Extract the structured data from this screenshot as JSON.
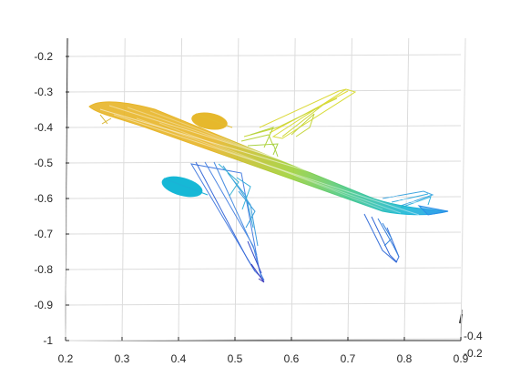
{
  "chart_data": {
    "type": "mesh",
    "description_type": "3d-wireframe",
    "colormap": [
      "#3e26a8",
      "#2c7bf0",
      "#15b8d8",
      "#4cc98a",
      "#b7cf2b",
      "#f9e032"
    ],
    "grid": true,
    "xlim": [
      0.2,
      0.9
    ],
    "ylim": [
      -1,
      -0.2
    ],
    "x_ticks": [
      0.2,
      0.3,
      0.4,
      0.5,
      0.6,
      0.7,
      0.8,
      0.9
    ],
    "x_tick_labels": [
      "0.2",
      "0.3",
      "0.4",
      "0.5",
      "0.6",
      "0.7",
      "0.8",
      "0.9"
    ],
    "y_ticks": [
      -0.2,
      -0.3,
      -0.4,
      -0.5,
      -0.6,
      -0.7,
      -0.8,
      -0.9,
      -1
    ],
    "y_tick_labels": [
      "-0.2",
      "-0.3",
      "-0.4",
      "-0.5",
      "-0.6",
      "-0.7",
      "-0.8",
      "-0.9",
      "-1"
    ],
    "z_tick_labels": [
      "-0.4",
      "-0.2"
    ],
    "title": "",
    "xlabel": "",
    "ylabel": ""
  }
}
